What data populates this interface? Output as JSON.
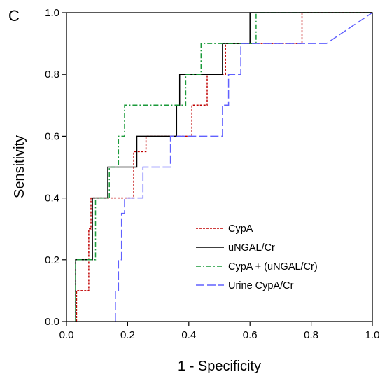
{
  "panel_label": "C",
  "chart_data": {
    "type": "line",
    "xlabel": "1 - Specificity",
    "ylabel": "Sensitivity",
    "xlim": [
      0,
      1
    ],
    "ylim": [
      0,
      1
    ],
    "x_ticks": [
      "0.0",
      "0.2",
      "0.4",
      "0.6",
      "0.8",
      "1.0"
    ],
    "y_ticks": [
      "0.0",
      "0.2",
      "0.4",
      "0.6",
      "0.8",
      "1.0"
    ],
    "grid": false,
    "legend_position": "bottom-right",
    "series": [
      {
        "name": "CypA",
        "color": "#c00000",
        "dash": "3,2",
        "x": [
          0.033,
          0.033,
          0.045,
          0.045,
          0.073,
          0.073,
          0.08,
          0.08,
          0.2,
          0.2,
          0.22,
          0.22,
          0.26,
          0.26,
          0.41,
          0.41,
          0.46,
          0.46,
          0.52,
          0.52,
          0.77,
          0.77,
          1.0
        ],
        "y": [
          0.0,
          0.1,
          0.1,
          0.1,
          0.1,
          0.3,
          0.3,
          0.4,
          0.4,
          0.4,
          0.4,
          0.55,
          0.55,
          0.6,
          0.6,
          0.7,
          0.7,
          0.8,
          0.8,
          0.9,
          0.9,
          1.0,
          1.0
        ]
      },
      {
        "name": "uNGAL/Cr",
        "color": "#000000",
        "dash": "",
        "x": [
          0.03,
          0.03,
          0.085,
          0.085,
          0.135,
          0.135,
          0.17,
          0.17,
          0.23,
          0.23,
          0.36,
          0.36,
          0.37,
          0.37,
          0.51,
          0.51,
          0.6,
          0.6,
          1.0
        ],
        "y": [
          0.0,
          0.2,
          0.2,
          0.4,
          0.4,
          0.5,
          0.5,
          0.5,
          0.5,
          0.6,
          0.6,
          0.7,
          0.7,
          0.8,
          0.8,
          0.9,
          0.9,
          1.0,
          1.0
        ]
      },
      {
        "name": "CypA + (uNGAL/Cr)",
        "color": "#1a9a3a",
        "dash": "7,3,2,3",
        "x": [
          0.03,
          0.03,
          0.095,
          0.095,
          0.14,
          0.14,
          0.17,
          0.17,
          0.19,
          0.19,
          0.39,
          0.39,
          0.44,
          0.44,
          0.52,
          0.52,
          0.62,
          0.62,
          1.0
        ],
        "y": [
          0.0,
          0.2,
          0.2,
          0.4,
          0.4,
          0.5,
          0.5,
          0.6,
          0.6,
          0.7,
          0.7,
          0.8,
          0.8,
          0.9,
          0.9,
          0.9,
          0.9,
          1.0,
          1.0
        ]
      },
      {
        "name": "Urine CypA/Cr",
        "color": "#6060ff",
        "dash": "12,4",
        "x": [
          0.16,
          0.16,
          0.17,
          0.17,
          0.18,
          0.18,
          0.19,
          0.19,
          0.25,
          0.25,
          0.34,
          0.34,
          0.51,
          0.51,
          0.53,
          0.53,
          0.57,
          0.57,
          0.85,
          1.0
        ],
        "y": [
          0.0,
          0.1,
          0.1,
          0.2,
          0.2,
          0.35,
          0.35,
          0.4,
          0.4,
          0.5,
          0.5,
          0.6,
          0.6,
          0.7,
          0.7,
          0.8,
          0.8,
          0.9,
          0.9,
          1.0
        ]
      }
    ]
  }
}
